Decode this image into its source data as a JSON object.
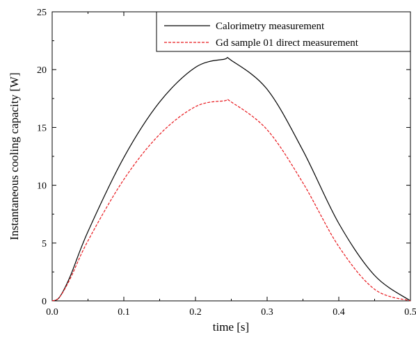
{
  "chart_data": {
    "type": "line",
    "xlabel": "time [s]",
    "ylabel": "Instantaneous cooling capacity [W]",
    "xlim": [
      0.0,
      0.5
    ],
    "ylim": [
      0,
      25
    ],
    "x_ticks": [
      "0.0",
      "0.1",
      "0.2",
      "0.3",
      "0.4",
      "0.5"
    ],
    "y_ticks": [
      "0",
      "5",
      "10",
      "15",
      "20",
      "25"
    ],
    "grid": false,
    "legend_position": "top-right",
    "x": [
      0.0,
      0.01,
      0.025,
      0.05,
      0.1,
      0.15,
      0.2,
      0.24,
      0.25,
      0.3,
      0.35,
      0.4,
      0.45,
      0.5
    ],
    "series": [
      {
        "name": "Calorimetry measurement",
        "color": "#000000",
        "dash": "solid",
        "values": [
          0.0,
          0.3,
          2.1,
          6.0,
          12.4,
          17.2,
          20.2,
          20.9,
          20.8,
          18.3,
          13.0,
          6.7,
          2.2,
          0.0
        ]
      },
      {
        "name": "Gd sample 01 direct measurement",
        "color": "#e8161b",
        "dash": "dashed",
        "values": [
          0.0,
          0.3,
          1.9,
          5.2,
          10.5,
          14.4,
          16.8,
          17.3,
          17.2,
          14.8,
          10.2,
          4.7,
          1.0,
          0.0
        ]
      }
    ]
  }
}
